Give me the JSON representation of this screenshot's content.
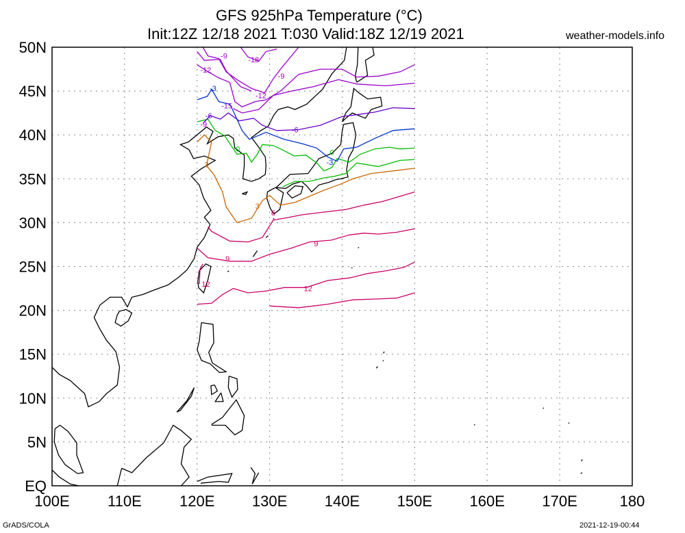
{
  "header": {
    "title_line1": "GFS 925hPa Temperature (°C)",
    "title_line2": "Init:12Z 12/18 2021 T:030 Valid:18Z 12/19 2021",
    "site": "weather-models.info"
  },
  "footer": {
    "left": "GrADS/COLA",
    "right": "2021-12-19-00:44"
  },
  "map": {
    "lat_labels": [
      "50N",
      "45N",
      "40N",
      "35N",
      "30N",
      "25N",
      "20N",
      "15N",
      "10N",
      "5N",
      "EQ"
    ],
    "lon_labels": [
      "100E",
      "110E",
      "120E",
      "130E",
      "140E",
      "150E",
      "160E",
      "170E",
      "180"
    ],
    "contour_colors": {
      "-18": "#9900cc",
      "-15": "#9900cc",
      "-12": "#9900cc",
      "-9": "#9900cc",
      "-6": "#6600cc",
      "-3": "#0033cc",
      "0": "#00bb00",
      "3": "#cc6600",
      "6": "#cc0066",
      "9": "#cc0066",
      "12": "#cc0066"
    },
    "contour_labels": [
      {
        "text": "-18",
        "lon": 127.8,
        "lat": 48.3
      },
      {
        "text": "-15",
        "lon": 124.1,
        "lat": 43.0
      },
      {
        "text": "-12",
        "lon": 121.2,
        "lat": 47.1
      },
      {
        "text": "-12",
        "lon": 128.8,
        "lat": 44.2
      },
      {
        "text": "-9",
        "lon": 123.7,
        "lat": 48.7
      },
      {
        "text": "-9",
        "lon": 131.6,
        "lat": 46.4
      },
      {
        "text": "-9",
        "lon": 120.9,
        "lat": 40.9
      },
      {
        "text": "-6",
        "lon": 121.6,
        "lat": 41.9
      },
      {
        "text": "-6",
        "lon": 133.5,
        "lat": 40.3
      },
      {
        "text": "-3",
        "lon": 122.2,
        "lat": 45.0
      },
      {
        "text": "-3",
        "lon": 138.3,
        "lat": 36.6
      },
      {
        "text": "0",
        "lon": 125.6,
        "lat": 38.1
      },
      {
        "text": "0",
        "lon": 138.6,
        "lat": 37.7
      },
      {
        "text": "3",
        "lon": 121.3,
        "lat": 36.3
      },
      {
        "text": "3",
        "lon": 128.3,
        "lat": 31.6
      },
      {
        "text": "6",
        "lon": 130.5,
        "lat": 30.8
      },
      {
        "text": "9",
        "lon": 124.2,
        "lat": 25.6
      },
      {
        "text": "9",
        "lon": 136.4,
        "lat": 27.3
      },
      {
        "text": "12",
        "lon": 121.2,
        "lat": 22.7
      },
      {
        "text": "12",
        "lon": 135.3,
        "lat": 22.2
      }
    ]
  }
}
